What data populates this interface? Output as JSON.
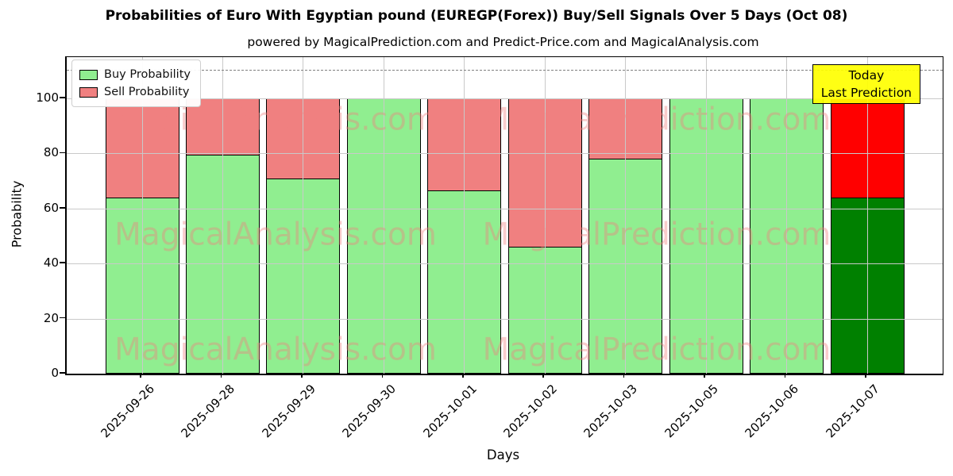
{
  "chart_data": {
    "type": "bar",
    "stacked": true,
    "title": "Probabilities of Euro With Egyptian pound (EUREGP(Forex)) Buy/Sell Signals Over 5 Days (Oct 08)",
    "subtitle": "powered by MagicalPrediction.com and Predict-Price.com and MagicalAnalysis.com",
    "xlabel": "Days",
    "ylabel": "Probability",
    "ylim": [
      0,
      115
    ],
    "yticks": [
      0,
      20,
      40,
      60,
      80,
      100
    ],
    "grid": true,
    "categories": [
      "2025-09-26",
      "2025-09-28",
      "2025-09-29",
      "2025-09-30",
      "2025-10-01",
      "2025-10-02",
      "2025-10-03",
      "2025-10-05",
      "2025-10-06",
      "2025-10-07"
    ],
    "series": [
      {
        "name": "Buy Probability",
        "color": "#90EE90",
        "values": [
          64,
          79.5,
          71,
          100,
          66.5,
          46,
          78,
          100,
          100,
          64
        ]
      },
      {
        "name": "Sell Probability",
        "color": "#F08080",
        "values": [
          36,
          20.5,
          29,
          0,
          33.5,
          54,
          22,
          0,
          0,
          36
        ]
      }
    ],
    "last_bar_colors": {
      "buy": "#008000",
      "sell": "#FF0000"
    },
    "threshold_line": {
      "y": 110,
      "color": "#7f7f7f",
      "style": "dashed"
    },
    "legend": {
      "position": "upper left"
    },
    "annotation": {
      "lines": [
        "Today",
        "Last Prediction"
      ],
      "bg_color": "#FFFF00",
      "border_color": "#000000"
    },
    "watermarks": {
      "texts": [
        "MagicalAnalysis.com",
        "MagicalPrediction.com"
      ],
      "color": "rgba(240,128,128,0.40)"
    }
  }
}
